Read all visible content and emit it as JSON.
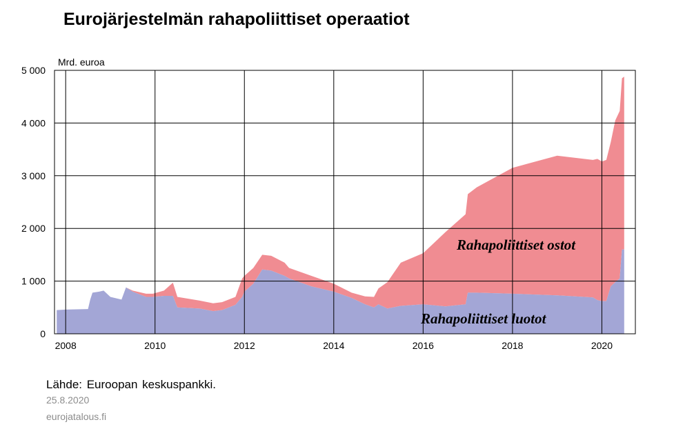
{
  "title": "Eurojärjestelmän rahapoliittiset operaatiot",
  "unit_label": "Mrd. euroa",
  "source": "Lähde: Euroopan keskuspankki.",
  "date": "25.8.2020",
  "site": "eurojatalous.fi",
  "colors": {
    "ostot": "#f08c92",
    "luotot": "#a3a6d6",
    "grid": "#000000"
  },
  "chart_data": {
    "type": "area",
    "stacked": true,
    "xlim": [
      2007.75,
      2020.75
    ],
    "ylim": [
      0,
      5000
    ],
    "x_ticks": [
      2008,
      2010,
      2012,
      2014,
      2016,
      2018,
      2020
    ],
    "x_tick_labels": [
      "2008",
      "2010",
      "2012",
      "2014",
      "2016",
      "2018",
      "2020"
    ],
    "y_ticks": [
      0,
      1000,
      2000,
      3000,
      4000,
      5000
    ],
    "y_tick_labels": [
      "0",
      "1 000",
      "2 000",
      "3 000",
      "4 000",
      "5 000"
    ],
    "grid": true,
    "series": [
      {
        "name": "Rahapoliittiset luotot",
        "x": [
          2007.8,
          2008.0,
          2008.5,
          2008.55,
          2008.6,
          2008.75,
          2008.85,
          2009.0,
          2009.25,
          2009.35,
          2009.5,
          2009.8,
          2009.95,
          2010.2,
          2010.4,
          2010.5,
          2011.0,
          2011.3,
          2011.5,
          2011.8,
          2011.95,
          2012.0,
          2012.2,
          2012.4,
          2012.6,
          2012.9,
          2013.0,
          2013.5,
          2014.0,
          2014.4,
          2014.7,
          2014.9,
          2015.0,
          2015.2,
          2015.5,
          2016.0,
          2016.5,
          2016.95,
          2017.0,
          2017.2,
          2018.0,
          2019.0,
          2019.8,
          2019.9,
          2020.0,
          2020.1,
          2020.2,
          2020.3,
          2020.4,
          2020.45,
          2020.5
        ],
        "y": [
          450,
          460,
          470,
          650,
          780,
          800,
          820,
          700,
          650,
          880,
          800,
          700,
          700,
          720,
          720,
          500,
          480,
          430,
          450,
          550,
          700,
          800,
          950,
          1220,
          1200,
          1100,
          1050,
          900,
          800,
          680,
          560,
          500,
          560,
          480,
          530,
          560,
          520,
          560,
          780,
          780,
          760,
          730,
          690,
          640,
          620,
          620,
          900,
          980,
          1050,
          1600,
          1600
        ]
      },
      {
        "name": "Rahapoliittiset ostot",
        "x": [
          2007.8,
          2008.0,
          2008.5,
          2008.55,
          2008.6,
          2008.75,
          2008.85,
          2009.0,
          2009.25,
          2009.35,
          2009.5,
          2009.8,
          2009.95,
          2010.2,
          2010.4,
          2010.5,
          2011.0,
          2011.3,
          2011.5,
          2011.8,
          2011.95,
          2012.0,
          2012.2,
          2012.4,
          2012.6,
          2012.9,
          2013.0,
          2013.5,
          2014.0,
          2014.4,
          2014.7,
          2014.9,
          2015.0,
          2015.2,
          2015.5,
          2016.0,
          2016.5,
          2016.95,
          2017.0,
          2017.2,
          2018.0,
          2019.0,
          2019.8,
          2019.9,
          2020.0,
          2020.1,
          2020.2,
          2020.3,
          2020.4,
          2020.45,
          2020.5
        ],
        "y": [
          0,
          0,
          0,
          0,
          0,
          0,
          0,
          0,
          0,
          0,
          20,
          60,
          60,
          100,
          250,
          200,
          150,
          150,
          150,
          150,
          350,
          300,
          300,
          280,
          280,
          250,
          200,
          200,
          150,
          100,
          150,
          200,
          300,
          500,
          820,
          970,
          1410,
          1710,
          1870,
          2000,
          2390,
          2650,
          2610,
          2680,
          2650,
          2680,
          2740,
          3070,
          3180,
          3250,
          3280
        ]
      }
    ]
  }
}
